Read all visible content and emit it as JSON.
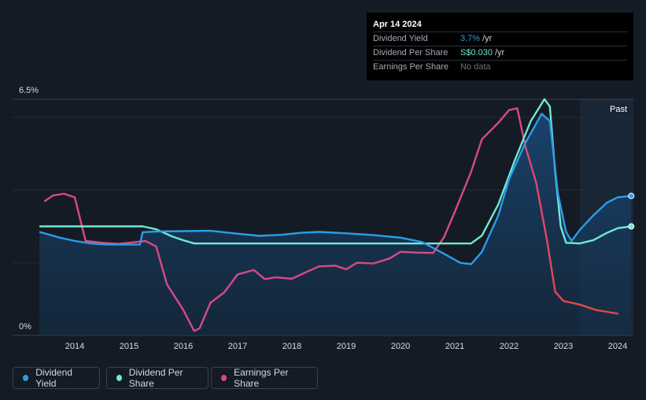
{
  "tooltip": {
    "date": "Apr 14 2024",
    "rows": [
      {
        "label": "Dividend Yield",
        "value": "3.7%",
        "unit": "/yr"
      },
      {
        "label": "Dividend Per Share",
        "value": "S$0.030",
        "unit": "/yr"
      },
      {
        "label": "Earnings Per Share",
        "value": "No data"
      }
    ]
  },
  "legend": {
    "dividend_yield": "Dividend Yield",
    "dividend_per_share": "Dividend Per Share",
    "earnings_per_share": "Earnings Per Share"
  },
  "colors": {
    "dividend_yield": "#2b9de9",
    "dividend_per_share": "#6ee9d6",
    "earnings_per_share": "#d84a83",
    "eps_recent": "#e64545"
  },
  "chart_data": {
    "type": "line",
    "title": "",
    "y_top_label": "6.5%",
    "y_bottom_label": "0%",
    "ylim": [
      0,
      6.5
    ],
    "xlim": [
      2013.3,
      2024.3
    ],
    "x_ticks": [
      "2014",
      "2015",
      "2016",
      "2017",
      "2018",
      "2019",
      "2020",
      "2021",
      "2022",
      "2023",
      "2024"
    ],
    "past_label": "Past",
    "past_start": 2023.3,
    "series": [
      {
        "name": "Dividend Yield",
        "unit": "%",
        "points": [
          [
            2013.35,
            2.85
          ],
          [
            2013.7,
            2.7
          ],
          [
            2014.0,
            2.6
          ],
          [
            2014.3,
            2.53
          ],
          [
            2014.6,
            2.5
          ],
          [
            2015.0,
            2.5
          ],
          [
            2015.2,
            2.5
          ],
          [
            2015.25,
            2.84
          ],
          [
            2015.5,
            2.86
          ],
          [
            2016.0,
            2.87
          ],
          [
            2016.5,
            2.88
          ],
          [
            2017.0,
            2.8
          ],
          [
            2017.4,
            2.74
          ],
          [
            2017.8,
            2.77
          ],
          [
            2018.2,
            2.83
          ],
          [
            2018.5,
            2.85
          ],
          [
            2019.0,
            2.81
          ],
          [
            2019.5,
            2.76
          ],
          [
            2020.0,
            2.69
          ],
          [
            2020.4,
            2.57
          ],
          [
            2020.8,
            2.25
          ],
          [
            2021.1,
            2.0
          ],
          [
            2021.3,
            1.96
          ],
          [
            2021.5,
            2.3
          ],
          [
            2021.8,
            3.3
          ],
          [
            2022.0,
            4.3
          ],
          [
            2022.3,
            5.3
          ],
          [
            2022.6,
            6.1
          ],
          [
            2022.75,
            5.9
          ],
          [
            2022.9,
            3.9
          ],
          [
            2023.05,
            2.85
          ],
          [
            2023.15,
            2.6
          ],
          [
            2023.3,
            2.9
          ],
          [
            2023.55,
            3.3
          ],
          [
            2023.8,
            3.65
          ],
          [
            2024.0,
            3.8
          ],
          [
            2024.25,
            3.84
          ]
        ]
      },
      {
        "name": "Dividend Per Share",
        "unit": "S$",
        "points": [
          [
            2013.35,
            3.0
          ],
          [
            2015.25,
            3.0
          ],
          [
            2015.5,
            2.92
          ],
          [
            2015.8,
            2.72
          ],
          [
            2016.0,
            2.62
          ],
          [
            2016.2,
            2.53
          ],
          [
            2021.3,
            2.53
          ],
          [
            2021.5,
            2.75
          ],
          [
            2021.8,
            3.6
          ],
          [
            2022.1,
            4.8
          ],
          [
            2022.4,
            5.9
          ],
          [
            2022.65,
            6.5
          ],
          [
            2022.75,
            6.3
          ],
          [
            2022.85,
            4.5
          ],
          [
            2022.95,
            3.0
          ],
          [
            2023.05,
            2.55
          ],
          [
            2023.3,
            2.53
          ],
          [
            2023.55,
            2.62
          ],
          [
            2023.8,
            2.82
          ],
          [
            2024.0,
            2.95
          ],
          [
            2024.25,
            3.0
          ]
        ]
      },
      {
        "name": "Earnings Per Share",
        "unit": "S$",
        "points": [
          [
            2013.45,
            3.7
          ],
          [
            2013.6,
            3.85
          ],
          [
            2013.8,
            3.9
          ],
          [
            2014.0,
            3.8
          ],
          [
            2014.2,
            2.6
          ],
          [
            2014.5,
            2.55
          ],
          [
            2014.8,
            2.52
          ],
          [
            2015.0,
            2.55
          ],
          [
            2015.3,
            2.6
          ],
          [
            2015.5,
            2.45
          ],
          [
            2015.7,
            1.4
          ],
          [
            2016.0,
            0.7
          ],
          [
            2016.2,
            0.12
          ],
          [
            2016.3,
            0.2
          ],
          [
            2016.5,
            0.9
          ],
          [
            2016.75,
            1.18
          ],
          [
            2017.0,
            1.68
          ],
          [
            2017.3,
            1.8
          ],
          [
            2017.5,
            1.55
          ],
          [
            2017.7,
            1.6
          ],
          [
            2018.0,
            1.56
          ],
          [
            2018.2,
            1.7
          ],
          [
            2018.5,
            1.9
          ],
          [
            2018.8,
            1.92
          ],
          [
            2019.0,
            1.82
          ],
          [
            2019.2,
            2.0
          ],
          [
            2019.5,
            1.98
          ],
          [
            2019.8,
            2.12
          ],
          [
            2020.0,
            2.3
          ],
          [
            2020.3,
            2.28
          ],
          [
            2020.6,
            2.27
          ],
          [
            2020.8,
            2.7
          ],
          [
            2021.0,
            3.4
          ],
          [
            2021.3,
            4.5
          ],
          [
            2021.5,
            5.4
          ],
          [
            2021.8,
            5.85
          ],
          [
            2022.0,
            6.2
          ],
          [
            2022.15,
            6.25
          ],
          [
            2022.3,
            5.2
          ],
          [
            2022.5,
            4.2
          ],
          [
            2022.7,
            2.6
          ],
          [
            2022.85,
            1.2
          ],
          [
            2023.0,
            0.95
          ],
          [
            2023.3,
            0.85
          ],
          [
            2023.6,
            0.7
          ],
          [
            2024.0,
            0.6
          ]
        ]
      }
    ]
  }
}
